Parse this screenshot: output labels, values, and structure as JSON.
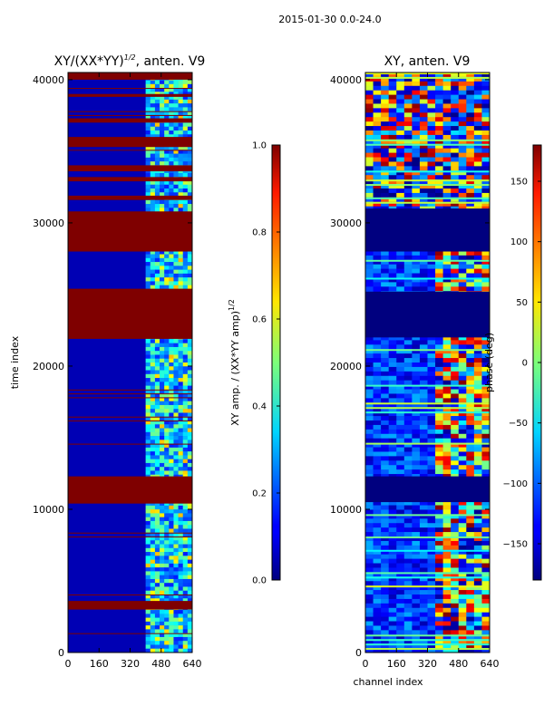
{
  "figure_title": "2015-01-30 0.0-24.0",
  "chart_data": [
    {
      "type": "heatmap",
      "title": "XY/(XX*YY)^(1/2), anten. V9",
      "title_main": "XY/(XX*YY)",
      "title_sup": "1/2",
      "title_rest": ", anten. V9",
      "xlabel": "",
      "ylabel": "time index",
      "xlim": [
        0,
        640
      ],
      "ylim": [
        0,
        40500
      ],
      "x_ticks": [
        0,
        160,
        320,
        480,
        640
      ],
      "y_ticks": [
        0,
        10000,
        20000,
        30000,
        40000
      ],
      "colorbar": {
        "label_main": "XY amp. / (XX*YY amp)",
        "label_sup": "1/2",
        "range": [
          0.0,
          1.0
        ],
        "ticks": [
          "0.0",
          "0.2",
          "0.4",
          "0.6",
          "0.8",
          "1.0"
        ],
        "colormap": "jet"
      },
      "saturated_bands": [
        [
          30800,
          28000
        ],
        [
          25400,
          21900
        ],
        [
          12300,
          10400
        ],
        [
          3600,
          3000
        ],
        [
          36000,
          35300
        ],
        [
          40500,
          40000
        ],
        [
          39000,
          38800
        ],
        [
          37300,
          37000
        ],
        [
          34000,
          33600
        ],
        [
          33200,
          32900
        ],
        [
          31900,
          31600
        ]
      ],
      "active_channel_range": [
        400,
        640
      ]
    },
    {
      "type": "heatmap",
      "title": "XY, anten. V9",
      "xlabel": "channel index",
      "ylabel": "",
      "xlim": [
        0,
        640
      ],
      "ylim": [
        0,
        40500
      ],
      "x_ticks": [
        0,
        160,
        320,
        480,
        640
      ],
      "y_ticks": [
        0,
        10000,
        20000,
        30000,
        40000
      ],
      "colorbar": {
        "label": "phase (deg)",
        "range": [
          -180,
          180
        ],
        "ticks": [
          150,
          100,
          50,
          0,
          -50,
          -100,
          -150
        ],
        "colormap": "jet"
      },
      "empty_bands": [
        [
          31000,
          28000
        ],
        [
          25200,
          22000
        ],
        [
          12300,
          10500
        ]
      ]
    }
  ]
}
